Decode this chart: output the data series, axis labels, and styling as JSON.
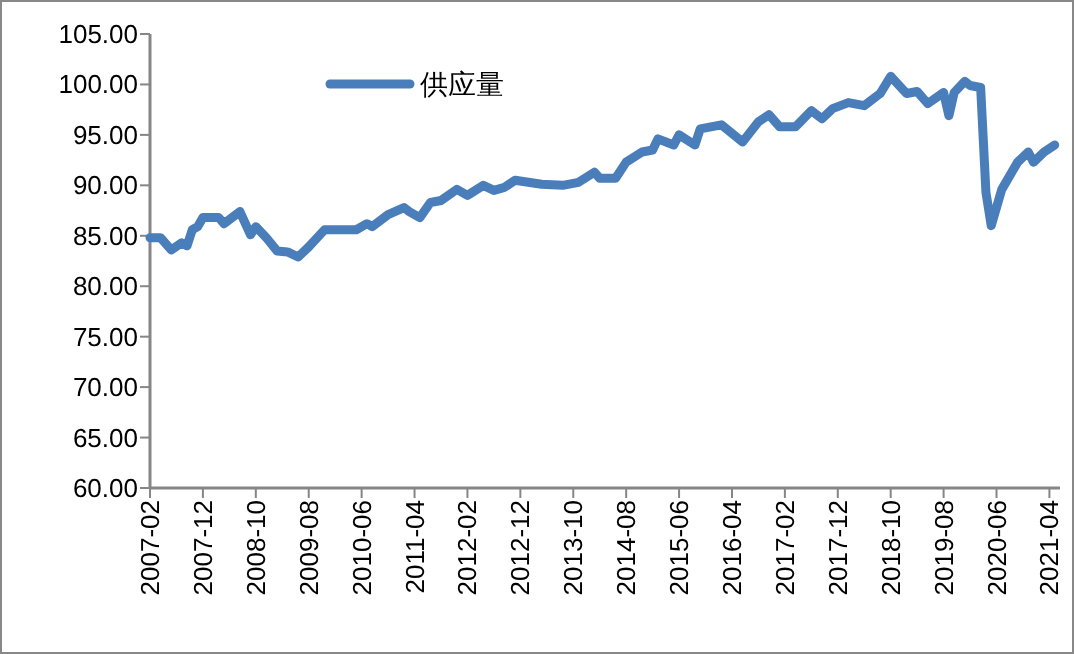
{
  "chart_data": {
    "type": "line",
    "x": [
      "2007-02",
      "2007-04",
      "2007-06",
      "2007-08",
      "2007-09",
      "2007-10",
      "2007-11",
      "2007-12",
      "2008-03",
      "2008-04",
      "2008-07",
      "2008-09",
      "2008-10",
      "2008-12",
      "2009-02",
      "2009-04",
      "2009-06",
      "2009-08",
      "2009-11",
      "2010-05",
      "2010-07",
      "2010-08",
      "2010-11",
      "2011-02",
      "2011-03",
      "2011-05",
      "2011-07",
      "2011-09",
      "2011-12",
      "2012-02",
      "2012-05",
      "2012-07",
      "2012-09",
      "2012-11",
      "2013-04",
      "2013-08",
      "2013-11",
      "2014-02",
      "2014-03",
      "2014-06",
      "2014-08",
      "2014-11",
      "2015-01",
      "2015-02",
      "2015-05",
      "2015-06",
      "2015-09",
      "2015-10",
      "2016-02",
      "2016-06",
      "2016-09",
      "2016-11",
      "2017-01",
      "2017-04",
      "2017-07",
      "2017-09",
      "2017-11",
      "2018-02",
      "2018-05",
      "2018-08",
      "2018-10",
      "2019-01",
      "2019-03",
      "2019-05",
      "2019-08",
      "2019-09",
      "2019-10",
      "2019-12",
      "2020-01",
      "2020-03",
      "2020-04",
      "2020-05",
      "2020-07",
      "2020-10",
      "2020-12",
      "2021-01",
      "2021-03",
      "2021-05"
    ],
    "series": [
      {
        "name": "供应量",
        "color": "#4a7ebb",
        "values": [
          84.8,
          84.8,
          83.6,
          84.3,
          84.0,
          85.6,
          85.9,
          86.8,
          86.8,
          86.2,
          87.4,
          85.1,
          85.9,
          84.8,
          83.5,
          83.4,
          82.9,
          83.9,
          85.6,
          85.6,
          86.2,
          85.9,
          87.1,
          87.8,
          87.4,
          86.8,
          88.3,
          88.5,
          89.6,
          89.0,
          90.0,
          89.5,
          89.8,
          90.5,
          90.1,
          90.0,
          90.3,
          91.3,
          90.7,
          90.7,
          92.3,
          93.3,
          93.5,
          94.6,
          94.0,
          95.0,
          94.0,
          95.6,
          96.0,
          94.3,
          96.3,
          97.0,
          95.8,
          95.8,
          97.4,
          96.6,
          97.6,
          98.2,
          97.9,
          99.1,
          100.8,
          99.1,
          99.3,
          98.1,
          99.2,
          96.9,
          99.2,
          100.3,
          99.9,
          99.7,
          89.3,
          86.0,
          89.6,
          92.3,
          93.3,
          92.3,
          93.3,
          94.0
        ]
      }
    ],
    "xlim": [
      "2007-02",
      "2021-06"
    ],
    "xticks": [
      "2007-02",
      "2007-12",
      "2008-10",
      "2009-08",
      "2010-06",
      "2011-04",
      "2012-02",
      "2012-12",
      "2013-10",
      "2014-08",
      "2015-06",
      "2016-04",
      "2017-02",
      "2017-12",
      "2018-10",
      "2019-08",
      "2020-06",
      "2021-04"
    ],
    "ylim": [
      60,
      105
    ],
    "yticks": [
      {
        "value": 60,
        "label": "60.00"
      },
      {
        "value": 65,
        "label": "65.00"
      },
      {
        "value": 70,
        "label": "70.00"
      },
      {
        "value": 75,
        "label": "75.00"
      },
      {
        "value": 80,
        "label": "80.00"
      },
      {
        "value": 85,
        "label": "85.00"
      },
      {
        "value": 90,
        "label": "90.00"
      },
      {
        "value": 95,
        "label": "95.00"
      },
      {
        "value": 100,
        "label": "100.00"
      },
      {
        "value": 105,
        "label": "105.00"
      }
    ],
    "legend": "top left",
    "grid": false
  }
}
